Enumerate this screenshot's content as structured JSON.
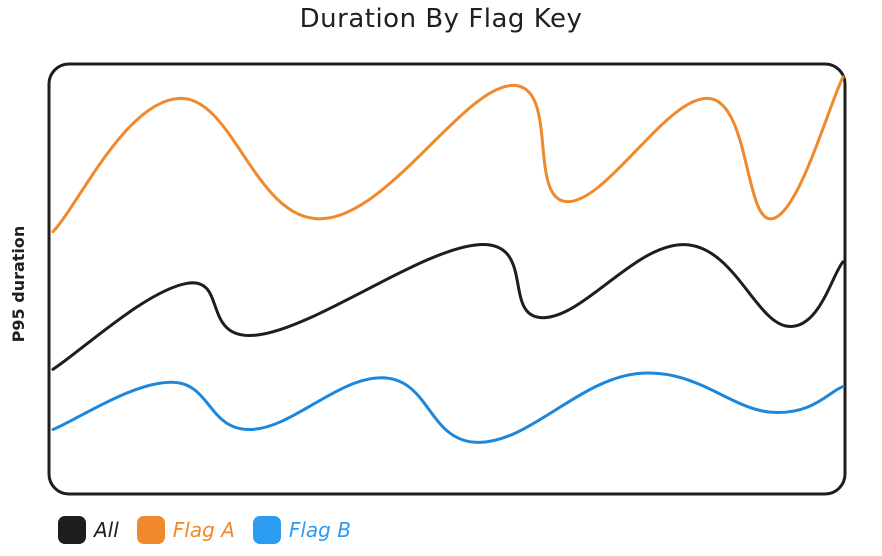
{
  "chart_data": {
    "type": "line",
    "title": "Duration By Flag Key",
    "xlabel": "",
    "ylabel": "P95 duration",
    "ylim": [
      0,
      100
    ],
    "xlim": [
      0,
      100
    ],
    "grid": false,
    "legend_position": "bottom-left",
    "series": [
      {
        "name": "Flag A",
        "color": "#f0892b",
        "x": [
          0,
          16,
          34,
          58,
          65,
          83,
          91,
          100
        ],
        "values": [
          61,
          92,
          64,
          95,
          68,
          92,
          64,
          97
        ]
      },
      {
        "name": "All",
        "color": "#1e1e1e",
        "x": [
          0,
          17,
          26,
          54,
          62,
          80,
          93,
          100
        ],
        "values": [
          29,
          49,
          37,
          58,
          41,
          58,
          39,
          54
        ]
      },
      {
        "name": "Flag B",
        "color": "#1d87db",
        "x": [
          0,
          15,
          25,
          42,
          54,
          74,
          91,
          100
        ],
        "values": [
          15,
          26,
          15,
          27,
          12,
          28,
          19,
          25
        ]
      }
    ],
    "legend": [
      {
        "label": "All",
        "color": "#1e1e1e"
      },
      {
        "label": "Flag A",
        "color": "#f0892b"
      },
      {
        "label": "Flag B",
        "color": "#2b9cf0"
      }
    ]
  }
}
